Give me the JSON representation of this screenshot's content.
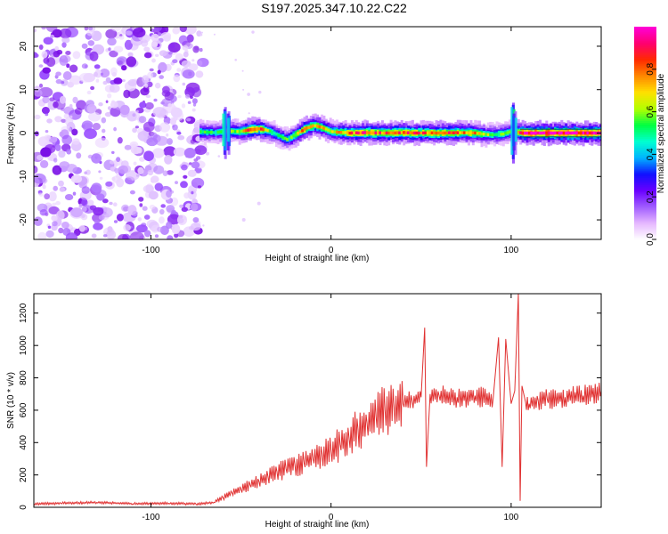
{
  "figure_title": "S197.2025.347.10.22.C22",
  "chart_data": [
    {
      "type": "heatmap",
      "title": "S197.2025.347.10.22.C22",
      "xlabel": "Height of straight line (km)",
      "ylabel": "Frequency (Hz)",
      "xlim": [
        -165,
        150
      ],
      "ylim": [
        -24.5,
        24.5
      ],
      "xticks": [
        -100,
        0,
        100
      ],
      "yticks": [
        -20,
        -10,
        0,
        10,
        20
      ],
      "colorbar": {
        "label": "Normalized spectral amplitude",
        "range": [
          0,
          1
        ],
        "ticks": [
          0.0,
          0.2,
          0.4,
          0.6,
          0.8
        ],
        "tick_labels": [
          "0.0",
          "0.2",
          "0.4",
          "0.6",
          "0.8"
        ],
        "colormap": [
          "#ffffff",
          "#e6b8ff",
          "#a05cff",
          "#6a00ff",
          "#1010ff",
          "#00b4ff",
          "#00ffd0",
          "#00ff40",
          "#b4ff00",
          "#ffe000",
          "#ff8800",
          "#ff2a00",
          "#ff0070",
          "#ff00d8"
        ]
      },
      "noise_region_x": [
        -165,
        -73
      ],
      "signal_start_x": -73,
      "signal_track": {
        "x": [
          -73,
          -65,
          -58,
          -52,
          -45,
          -40,
          -35,
          -30,
          -25,
          -20,
          -15,
          -10,
          -5,
          0,
          10,
          20,
          30,
          40,
          50,
          60,
          70,
          80,
          85,
          90,
          95,
          100,
          103,
          106,
          110,
          120,
          130,
          140,
          150
        ],
        "freq_hz": [
          0.3,
          0.1,
          0.5,
          0.3,
          0.8,
          1.0,
          0.5,
          -0.5,
          -1.5,
          -0.3,
          1.0,
          1.8,
          1.2,
          0.3,
          0.0,
          0.1,
          0.0,
          0.1,
          0.0,
          0.0,
          0.1,
          0.0,
          -0.3,
          -0.4,
          -0.2,
          0.5,
          0.2,
          0.0,
          0.0,
          0.0,
          0.0,
          0.0,
          0.0
        ],
        "amplitude": [
          0.55,
          0.5,
          0.65,
          0.6,
          0.85,
          0.8,
          0.6,
          0.5,
          0.55,
          0.65,
          0.8,
          0.75,
          0.7,
          0.65,
          0.8,
          0.85,
          0.8,
          0.85,
          0.8,
          0.85,
          0.8,
          0.75,
          0.6,
          0.55,
          0.6,
          0.5,
          0.7,
          0.95,
          0.95,
          0.98,
          0.98,
          0.98,
          0.98
        ]
      }
    },
    {
      "type": "line",
      "xlabel": "Height of straight line (km)",
      "ylabel": "SNR (10 * v/v)",
      "xlim": [
        -165,
        150
      ],
      "ylim": [
        0,
        1320
      ],
      "xticks": [
        -100,
        0,
        100
      ],
      "yticks": [
        0,
        200,
        400,
        600,
        800,
        1000,
        1200
      ],
      "line_color": "#e03030",
      "series": [
        {
          "name": "SNR",
          "x": [
            -165,
            -150,
            -130,
            -110,
            -90,
            -75,
            -65,
            -60,
            -55,
            -50,
            -45,
            -40,
            -35,
            -30,
            -25,
            -20,
            -15,
            -10,
            -5,
            0,
            5,
            10,
            15,
            20,
            25,
            30,
            35,
            40,
            45,
            50,
            52,
            53,
            55,
            60,
            70,
            80,
            90,
            93,
            95,
            97,
            100,
            102,
            104,
            105,
            106,
            108,
            110,
            115,
            120,
            130,
            140,
            150
          ],
          "y": [
            20,
            25,
            30,
            22,
            25,
            20,
            30,
            60,
            90,
            110,
            140,
            160,
            190,
            220,
            240,
            260,
            280,
            300,
            330,
            350,
            390,
            430,
            480,
            520,
            560,
            600,
            620,
            640,
            660,
            680,
            1110,
            250,
            700,
            690,
            680,
            690,
            670,
            1050,
            250,
            1040,
            640,
            720,
            1320,
            40,
            750,
            650,
            640,
            660,
            670,
            680,
            690,
            720
          ]
        }
      ]
    }
  ]
}
